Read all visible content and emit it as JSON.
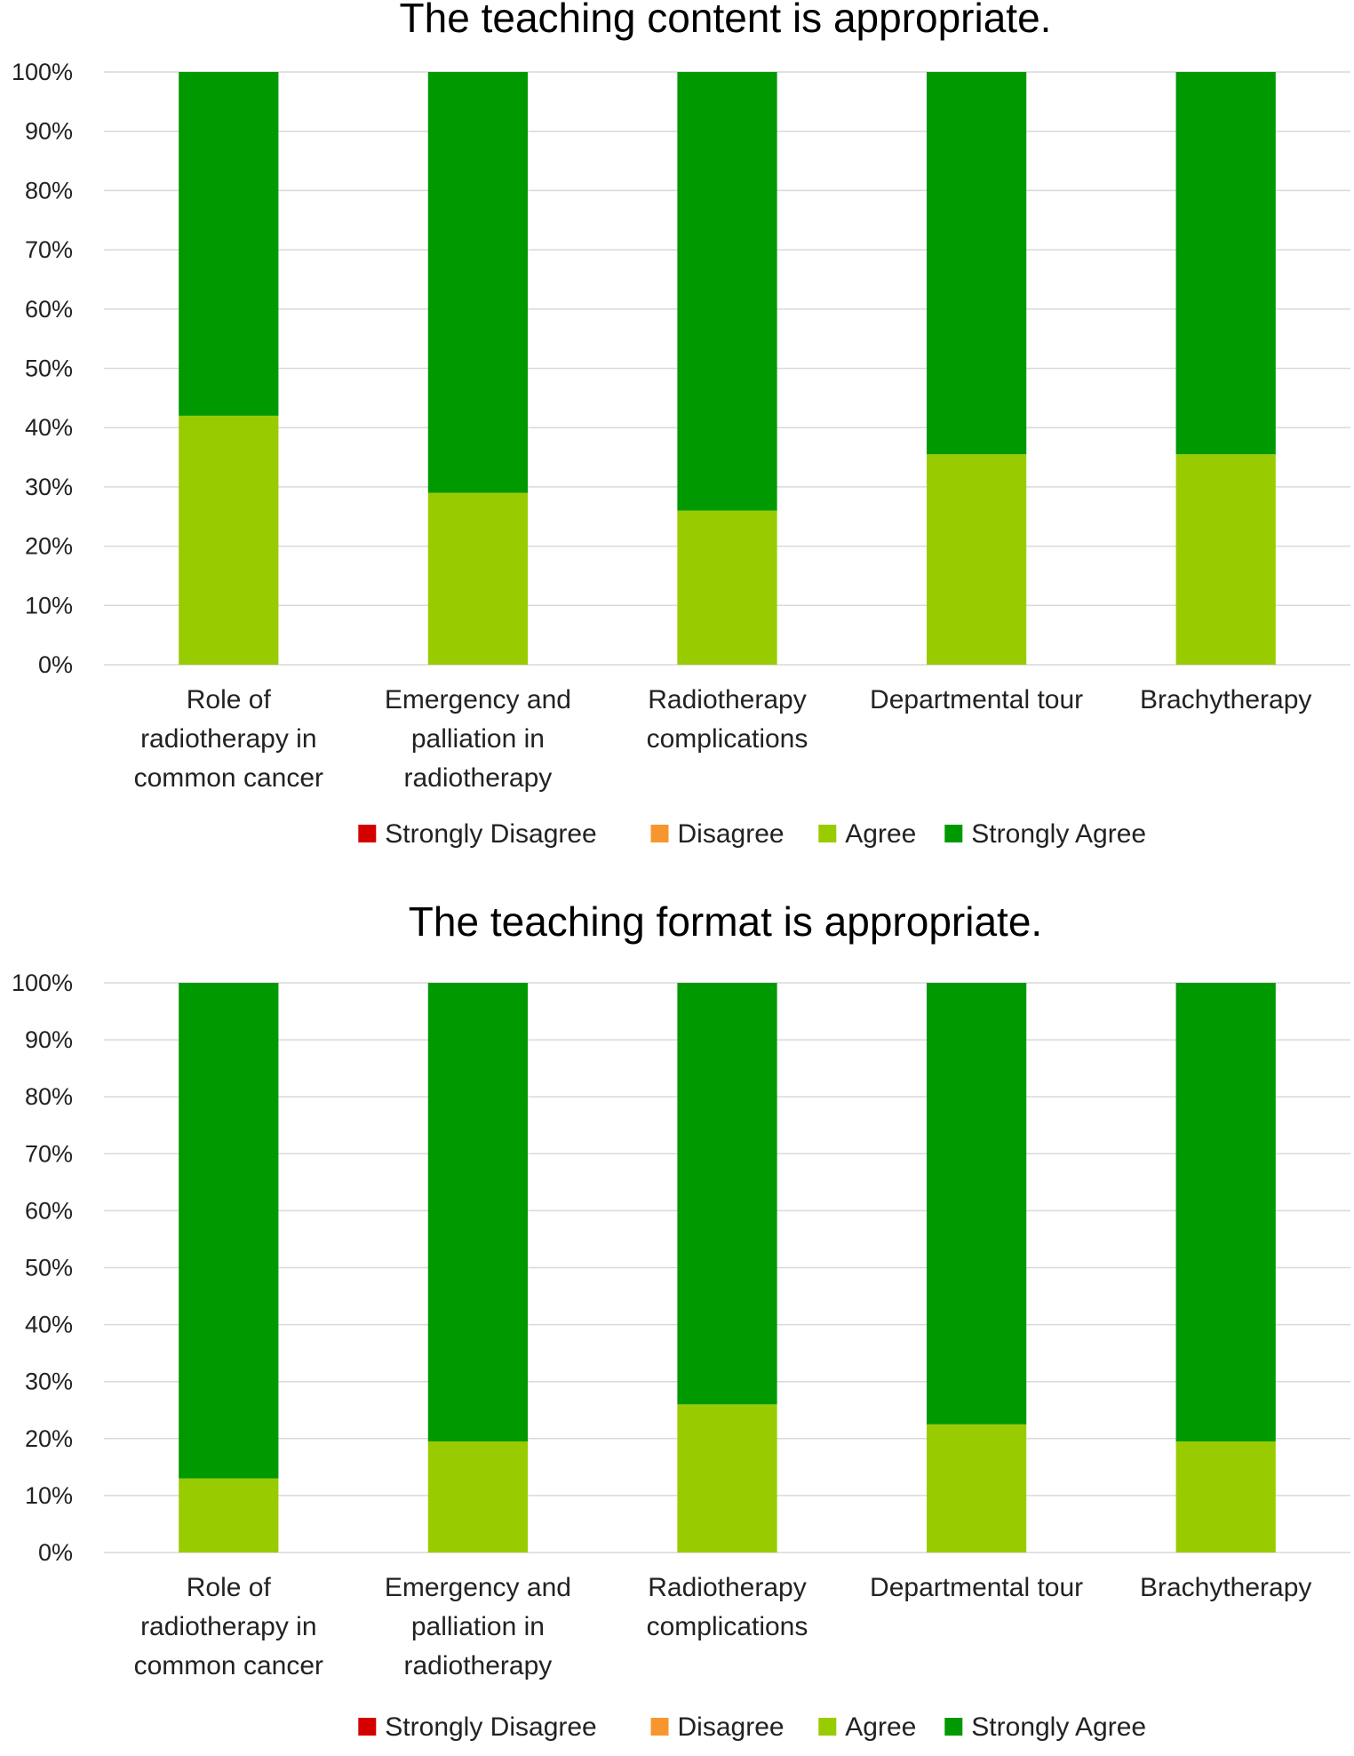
{
  "colors": {
    "strongly_disagree": "#d40000",
    "disagree": "#f7962f",
    "agree": "#99cc00",
    "strongly_agree": "#009900",
    "grid": "#d9d9d9"
  },
  "legend": [
    "Strongly Disagree",
    "Disagree",
    "Agree",
    "Strongly Agree"
  ],
  "chart_data": [
    {
      "type": "bar",
      "stacked": "percent",
      "title": "The teaching content is appropriate.",
      "xlabel": "",
      "ylabel": "",
      "ylim": [
        0,
        100
      ],
      "y_ticks": [
        "0%",
        "10%",
        "20%",
        "30%",
        "40%",
        "50%",
        "60%",
        "70%",
        "80%",
        "90%",
        "100%"
      ],
      "grid": true,
      "legend_position": "bottom",
      "categories": [
        [
          "Role of",
          "radiotherapy in",
          "common cancer"
        ],
        [
          "Emergency and",
          "palliation in",
          "radiotherapy"
        ],
        [
          "Radiotherapy",
          "complications"
        ],
        [
          "Departmental tour"
        ],
        [
          "Brachytherapy"
        ]
      ],
      "series": [
        {
          "name": "Strongly Disagree",
          "values": [
            0,
            0,
            0,
            0,
            0
          ]
        },
        {
          "name": "Disagree",
          "values": [
            0,
            0,
            0,
            0,
            0
          ]
        },
        {
          "name": "Agree",
          "values": [
            42,
            29,
            26,
            35.5,
            35.5
          ]
        },
        {
          "name": "Strongly Agree",
          "values": [
            58,
            71,
            74,
            64.5,
            64.5
          ]
        }
      ]
    },
    {
      "type": "bar",
      "stacked": "percent",
      "title": "The teaching format is appropriate.",
      "xlabel": "",
      "ylabel": "",
      "ylim": [
        0,
        100
      ],
      "y_ticks": [
        "0%",
        "10%",
        "20%",
        "30%",
        "40%",
        "50%",
        "60%",
        "70%",
        "80%",
        "90%",
        "100%"
      ],
      "grid": true,
      "legend_position": "bottom",
      "categories": [
        [
          "Role of",
          "radiotherapy in",
          "common cancer"
        ],
        [
          "Emergency and",
          "palliation in",
          "radiotherapy"
        ],
        [
          "Radiotherapy",
          "complications"
        ],
        [
          "Departmental tour"
        ],
        [
          "Brachytherapy"
        ]
      ],
      "series": [
        {
          "name": "Strongly Disagree",
          "values": [
            0,
            0,
            0,
            0,
            0
          ]
        },
        {
          "name": "Disagree",
          "values": [
            0,
            0,
            0,
            0,
            0
          ]
        },
        {
          "name": "Agree",
          "values": [
            13,
            19.5,
            26,
            22.5,
            19.5
          ]
        },
        {
          "name": "Strongly Agree",
          "values": [
            87,
            80.5,
            74,
            77.5,
            80.5
          ]
        }
      ]
    }
  ]
}
